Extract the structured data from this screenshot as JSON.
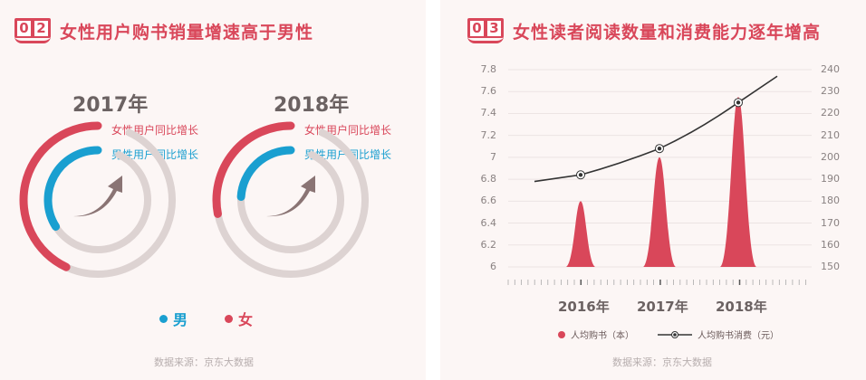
{
  "colors": {
    "female": "#d9475a",
    "male": "#1a9fd0",
    "track": "#ddd3d2",
    "arrow": "#8a7474",
    "line": "#333333"
  },
  "left": {
    "number": [
      "0",
      "2"
    ],
    "title": "女性用户购书销量增速高于男性",
    "donuts": [
      {
        "year": "2017年",
        "female_label": "女性用户同比增长",
        "male_label": "男性用户同比增长",
        "female_fraction": 0.43,
        "male_fraction": 0.34
      },
      {
        "year": "2018年",
        "female_label": "女性用户同比增长",
        "male_label": "男性用户同比增长",
        "female_fraction": 0.28,
        "male_fraction": 0.24
      }
    ],
    "legend": [
      {
        "label": "男",
        "icon": "blue-dot"
      },
      {
        "label": "女",
        "icon": "red-dot"
      }
    ],
    "source": "数据来源：京东大数据"
  },
  "right": {
    "number": [
      "0",
      "3"
    ],
    "title": "女性读者阅读数量和消费能力逐年增高",
    "source": "数据来源：京东大数据",
    "chart_data": {
      "type": "bar+line",
      "categories": [
        "2016年",
        "2017年",
        "2018年"
      ],
      "series": [
        {
          "name": "人均购书（本）",
          "axis": "left",
          "style": "peak",
          "values": [
            6.6,
            7.0,
            7.55
          ]
        },
        {
          "name": "人均购书消费（元）",
          "axis": "right",
          "style": "line",
          "values": [
            192,
            204,
            225
          ]
        }
      ],
      "left_axis": {
        "ticks": [
          "6",
          "6.2",
          "6.4",
          "6.6",
          "6.8",
          "7",
          "7.2",
          "7.4",
          "7.6",
          "7.8"
        ],
        "range": [
          6,
          7.8
        ]
      },
      "right_axis": {
        "ticks": [
          "150",
          "160",
          "170",
          "180",
          "190",
          "200",
          "210",
          "220",
          "230",
          "240"
        ],
        "range": [
          150,
          240
        ]
      },
      "grid": true,
      "legend_position": "bottom"
    }
  }
}
